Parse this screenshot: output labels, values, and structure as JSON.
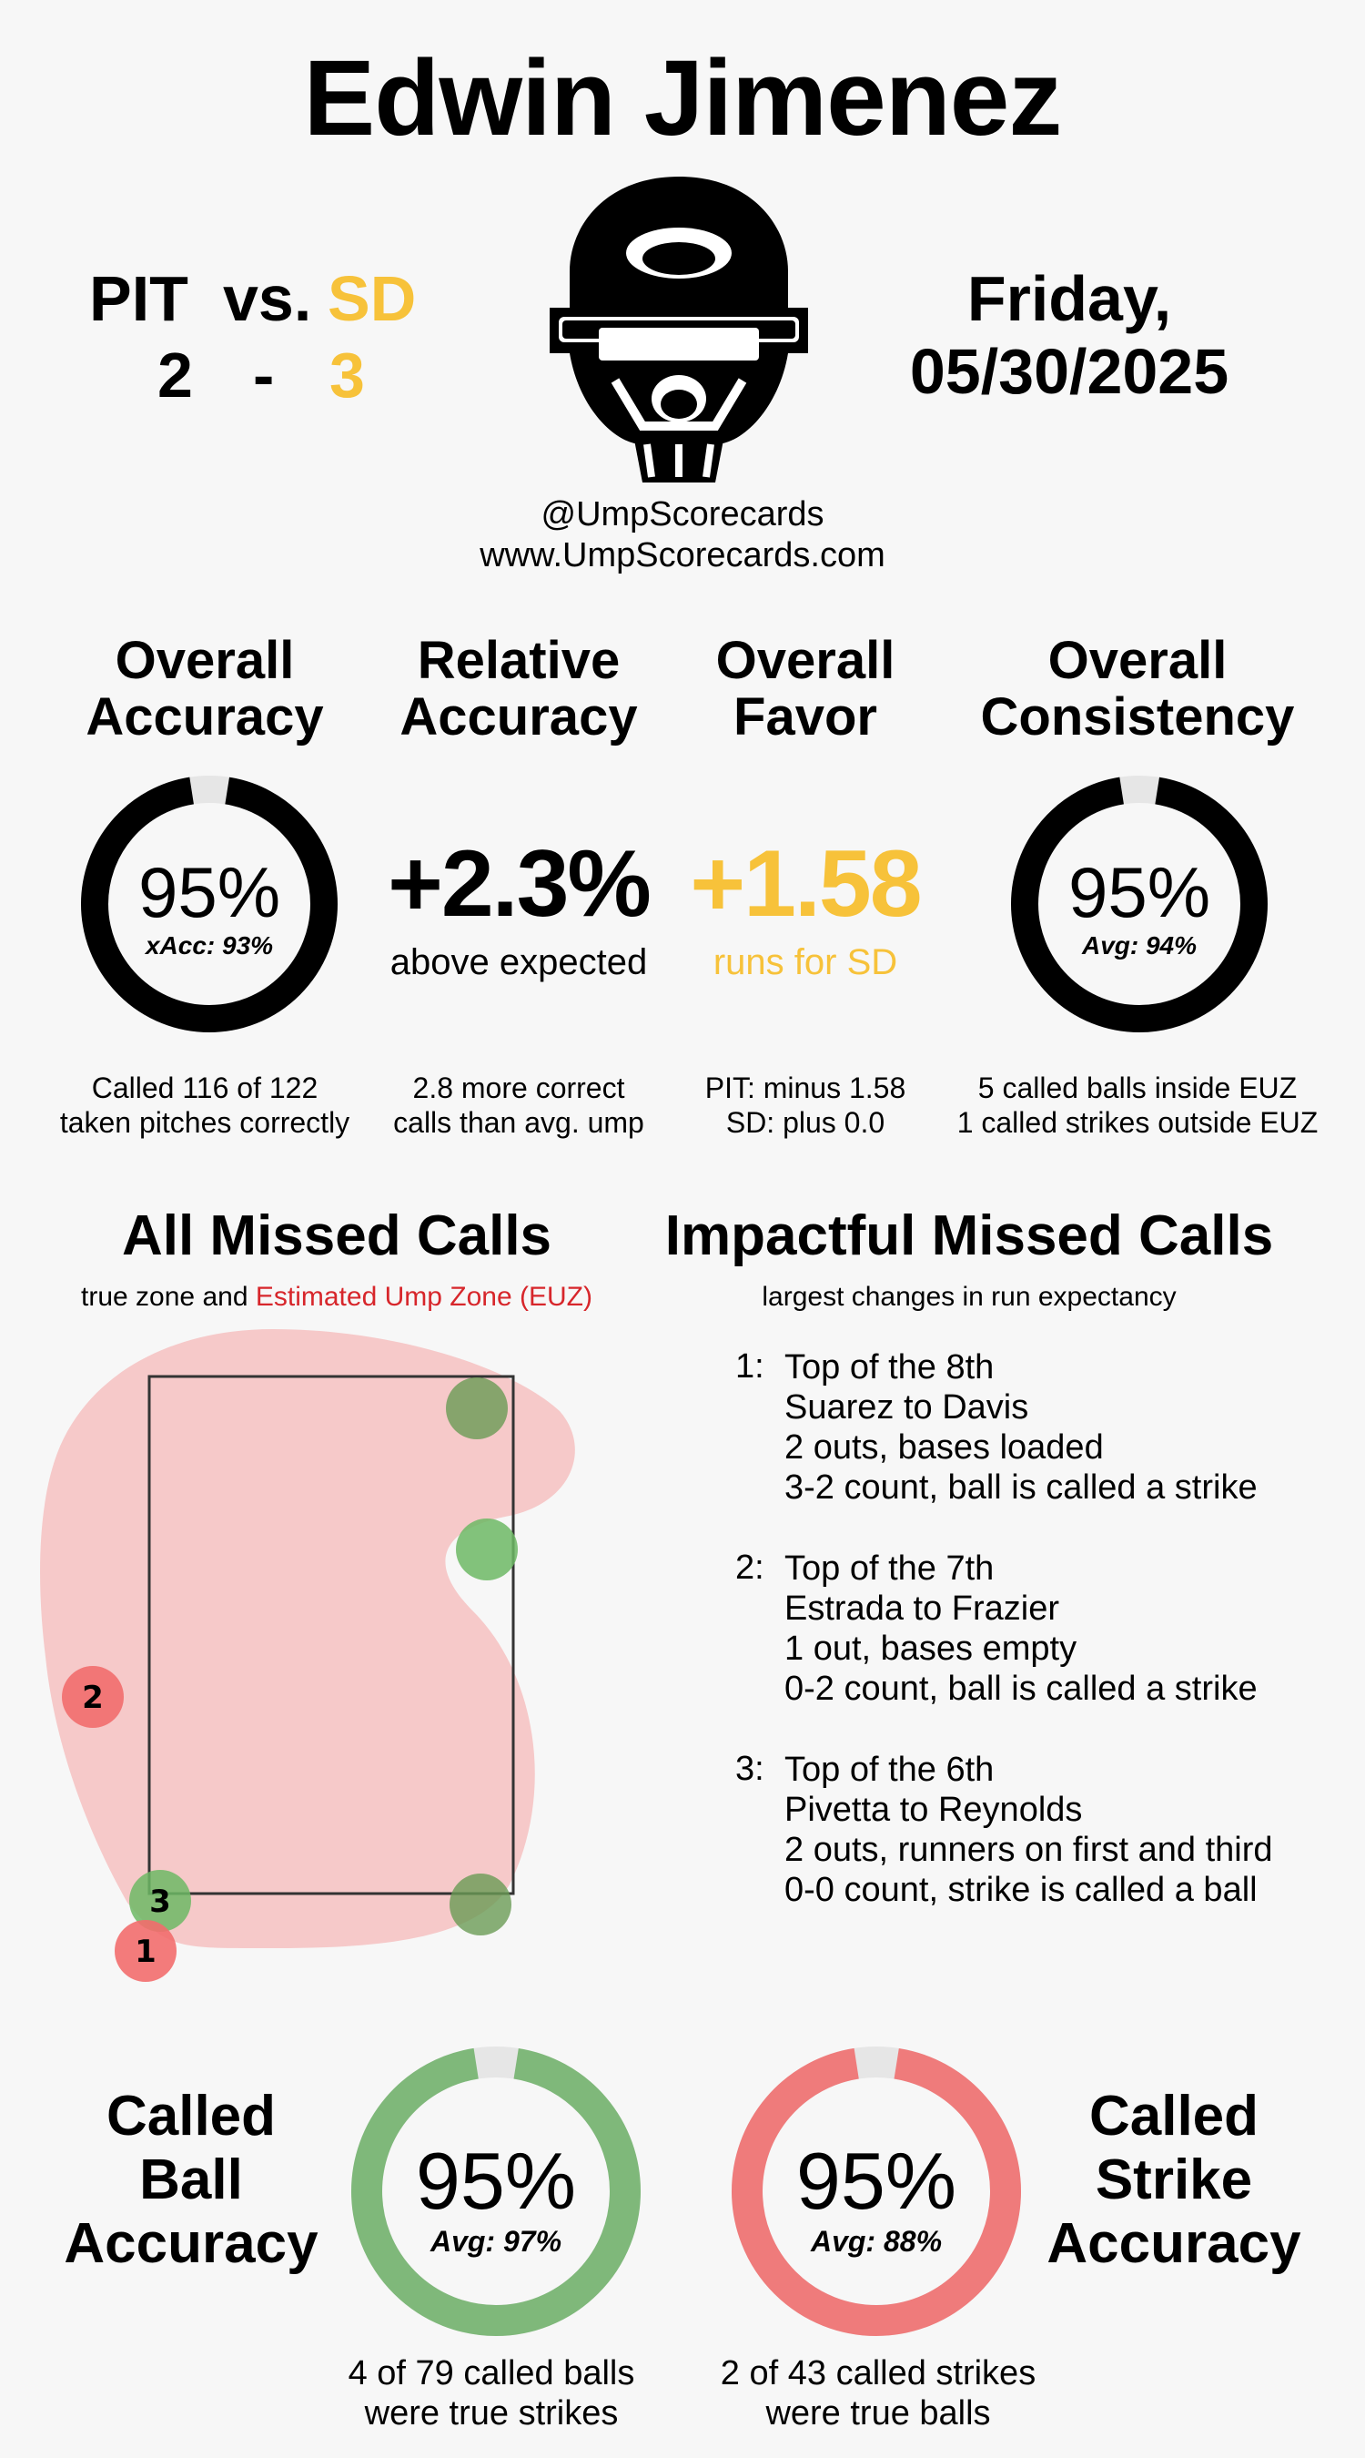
{
  "umpire": "Edwin Jimenez",
  "game": {
    "away": {
      "team": "PIT",
      "score": "2"
    },
    "vs": "vs.",
    "dash": "-",
    "home": {
      "team": "SD",
      "score": "3"
    },
    "day": "Friday,",
    "date": "05/30/2025"
  },
  "social": {
    "handle": "@UmpScorecards",
    "website": "www.UmpScorecards.com"
  },
  "stats": {
    "overall_accuracy": {
      "title_1": "Overall",
      "title_2": "Accuracy",
      "value": "95%",
      "sub": "xAcc: 93%",
      "fill": 0.95,
      "foot_1": "Called 116 of 122",
      "foot_2": "taken pitches correctly"
    },
    "relative_accuracy": {
      "title_1": "Relative",
      "title_2": "Accuracy",
      "value": "+2.3%",
      "sub": "above expected",
      "foot_1": "2.8 more correct",
      "foot_2": "calls than avg. ump"
    },
    "overall_favor": {
      "title_1": "Overall",
      "title_2": "Favor",
      "value": "+1.58",
      "sub": "runs for SD",
      "foot_1": "PIT: minus 1.58",
      "foot_2": "SD: plus 0.0"
    },
    "overall_consistency": {
      "title_1": "Overall",
      "title_2": "Consistency",
      "value": "95%",
      "sub": "Avg: 94%",
      "fill": 0.95,
      "foot_1": "5 called balls inside EUZ",
      "foot_2": "1 called strikes outside EUZ"
    }
  },
  "missed_calls": {
    "title": "All Missed Calls",
    "sub_1": "true zone and",
    "sub_2": "Estimated Ump Zone (EUZ)",
    "labels": [
      "1",
      "2",
      "3"
    ]
  },
  "impactful": {
    "title": "Impactful Missed Calls",
    "sub": "largest changes in run expectancy",
    "items": [
      {
        "num": "1:",
        "inning": "Top of the 8th",
        "matchup": "Suarez to Davis",
        "situation": "2 outs, bases loaded",
        "call": "3-2 count, ball is called a strike"
      },
      {
        "num": "2:",
        "inning": "Top of the 7th",
        "matchup": "Estrada to Frazier",
        "situation": "1 out, bases empty",
        "call": "0-2 count, ball is called a strike"
      },
      {
        "num": "3:",
        "inning": "Top of the 6th",
        "matchup": "Pivetta to Reynolds",
        "situation": "2 outs, runners on first and third",
        "call": "0-0 count, strike is called a ball"
      }
    ]
  },
  "called_ball": {
    "label_1": "Called",
    "label_2": "Ball",
    "label_3": "Accuracy",
    "value": "95%",
    "sub": "Avg: 97%",
    "fill": 0.95,
    "foot_1": "4 of 79 called balls",
    "foot_2": "were true strikes"
  },
  "called_strike": {
    "label_1": "Called",
    "label_2": "Strike",
    "label_3": "Accuracy",
    "value": "95%",
    "sub": "Avg: 88%",
    "fill": 0.95,
    "foot_1": "2 of 43 called strikes",
    "foot_2": "were true balls"
  },
  "colors": {
    "accent_gold": "#f7c23a",
    "euz_red": "#d7262b",
    "ball_green": "#7fb87a",
    "strike_red": "#ef7b7b",
    "ring_black": "#000000",
    "zone_fill": "#f6c9c9"
  }
}
